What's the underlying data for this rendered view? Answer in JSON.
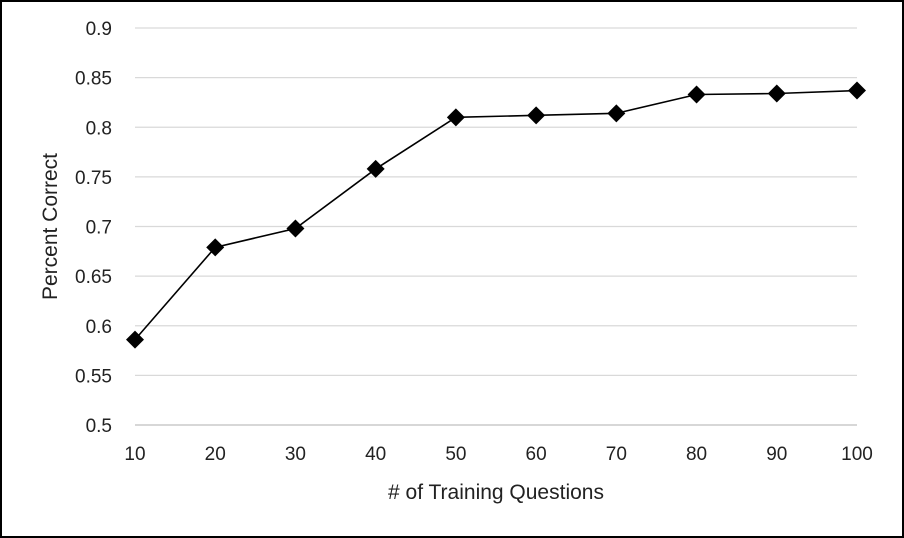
{
  "chart_data": {
    "type": "line",
    "title": "",
    "xlabel": "# of Training Questions",
    "ylabel": "Percent Correct",
    "x": [
      10,
      20,
      30,
      40,
      50,
      60,
      70,
      80,
      90,
      100
    ],
    "series": [
      {
        "values": [
          0.586,
          0.679,
          0.698,
          0.758,
          0.81,
          0.812,
          0.814,
          0.833,
          0.834,
          0.837
        ]
      }
    ],
    "ylim": [
      0.5,
      0.9
    ],
    "yticks": [
      "0.5",
      "0.55",
      "0.6",
      "0.65",
      "0.7",
      "0.75",
      "0.8",
      "0.85",
      "0.9"
    ],
    "xticks": [
      "10",
      "20",
      "30",
      "40",
      "50",
      "60",
      "70",
      "80",
      "90",
      "100"
    ],
    "grid": "horizontal",
    "marker": "diamond",
    "colors": {
      "line": "#000000",
      "marker": "#000000",
      "grid": "#d9d9d9"
    }
  }
}
